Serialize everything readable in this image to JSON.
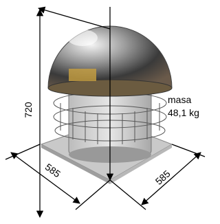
{
  "dimensions": {
    "height": "720",
    "depth_left": "585",
    "depth_right": "585"
  },
  "mass": {
    "label": "masa",
    "value": "48,1 kg"
  }
}
